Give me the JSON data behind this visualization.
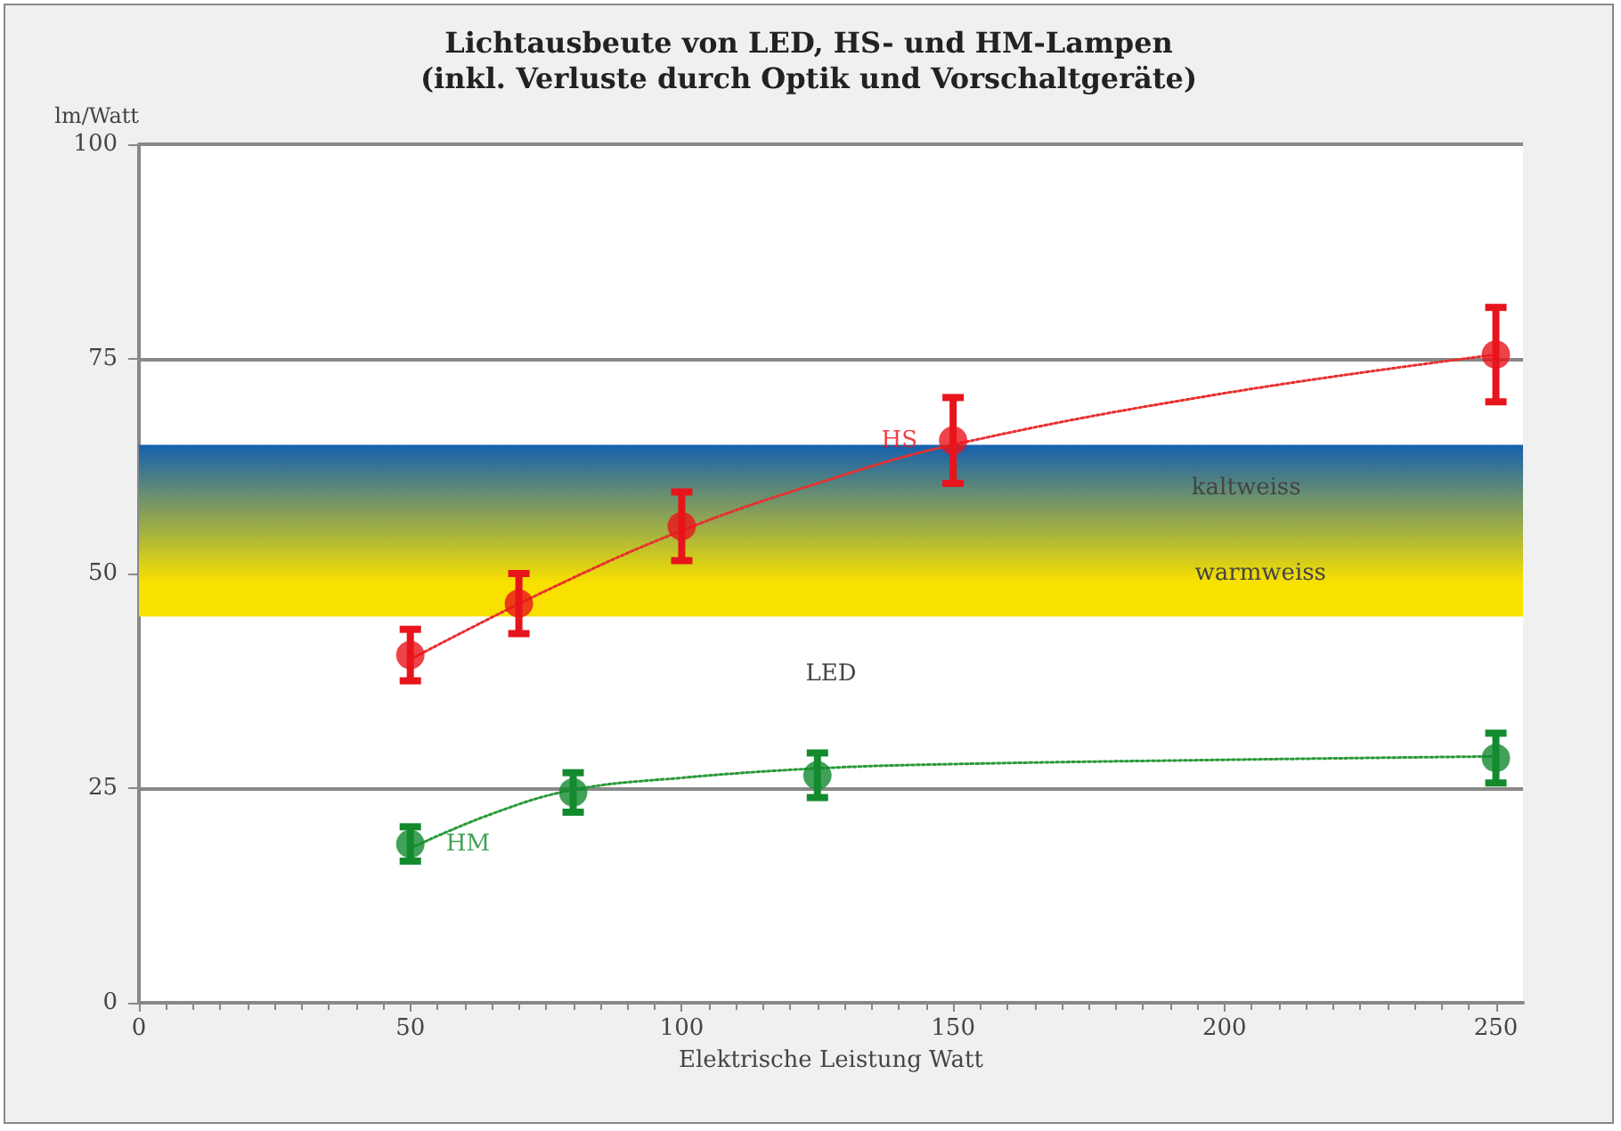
{
  "chart_data": {
    "type": "scatter",
    "title": "Lichtausbeute von LED, HS- und HM-Lampen",
    "subtitle": "(inkl. Verluste durch Optik und Vorschaltgeräte)",
    "xlabel": "Elektrische Leistung Watt",
    "ylabel": "lm/Watt",
    "xlim": [
      0,
      255
    ],
    "xticks": [
      0,
      50,
      100,
      150,
      200,
      250
    ],
    "ylim": [
      0,
      100
    ],
    "yticks": [
      0,
      25,
      50,
      75,
      100
    ],
    "grid": "y",
    "marker": "circle",
    "series": [
      {
        "type": "line",
        "color": "#e83030",
        "line_style": "dotted",
        "marker": "none",
        "x": [
          50,
          75,
          100,
          125,
          150,
          200,
          250
        ],
        "values": [
          40,
          48,
          55,
          60.5,
          65,
          71,
          75.5
        ]
      },
      {
        "type": "line",
        "color": "#2a9a3a",
        "line_style": "dotted",
        "marker": "none",
        "x": [
          50,
          65,
          80,
          100,
          125,
          150,
          200,
          250
        ],
        "values": [
          18,
          22,
          24.8,
          26.2,
          27.3,
          27.8,
          28.3,
          28.7
        ]
      },
      {
        "name": "HS",
        "color": "#e8141c",
        "x": [
          50,
          70,
          100,
          150,
          250
        ],
        "values": [
          40.5,
          46.5,
          55.5,
          65.5,
          75.5
        ],
        "errors": [
          3,
          3.5,
          4,
          5,
          5.5
        ]
      },
      {
        "name": "HM",
        "color": "#138a2e",
        "x": [
          50,
          80,
          125,
          250
        ],
        "values": [
          18.5,
          24.5,
          26.5,
          28.5
        ],
        "errors": [
          2,
          2.3,
          2.6,
          2.9
        ]
      }
    ],
    "bands": [
      {
        "axis": "y",
        "from": 45,
        "to": 65,
        "label": "LED",
        "color": "#f8e000"
      }
    ],
    "annotations": [
      "kaltweiss",
      "warmweiss"
    ]
  }
}
